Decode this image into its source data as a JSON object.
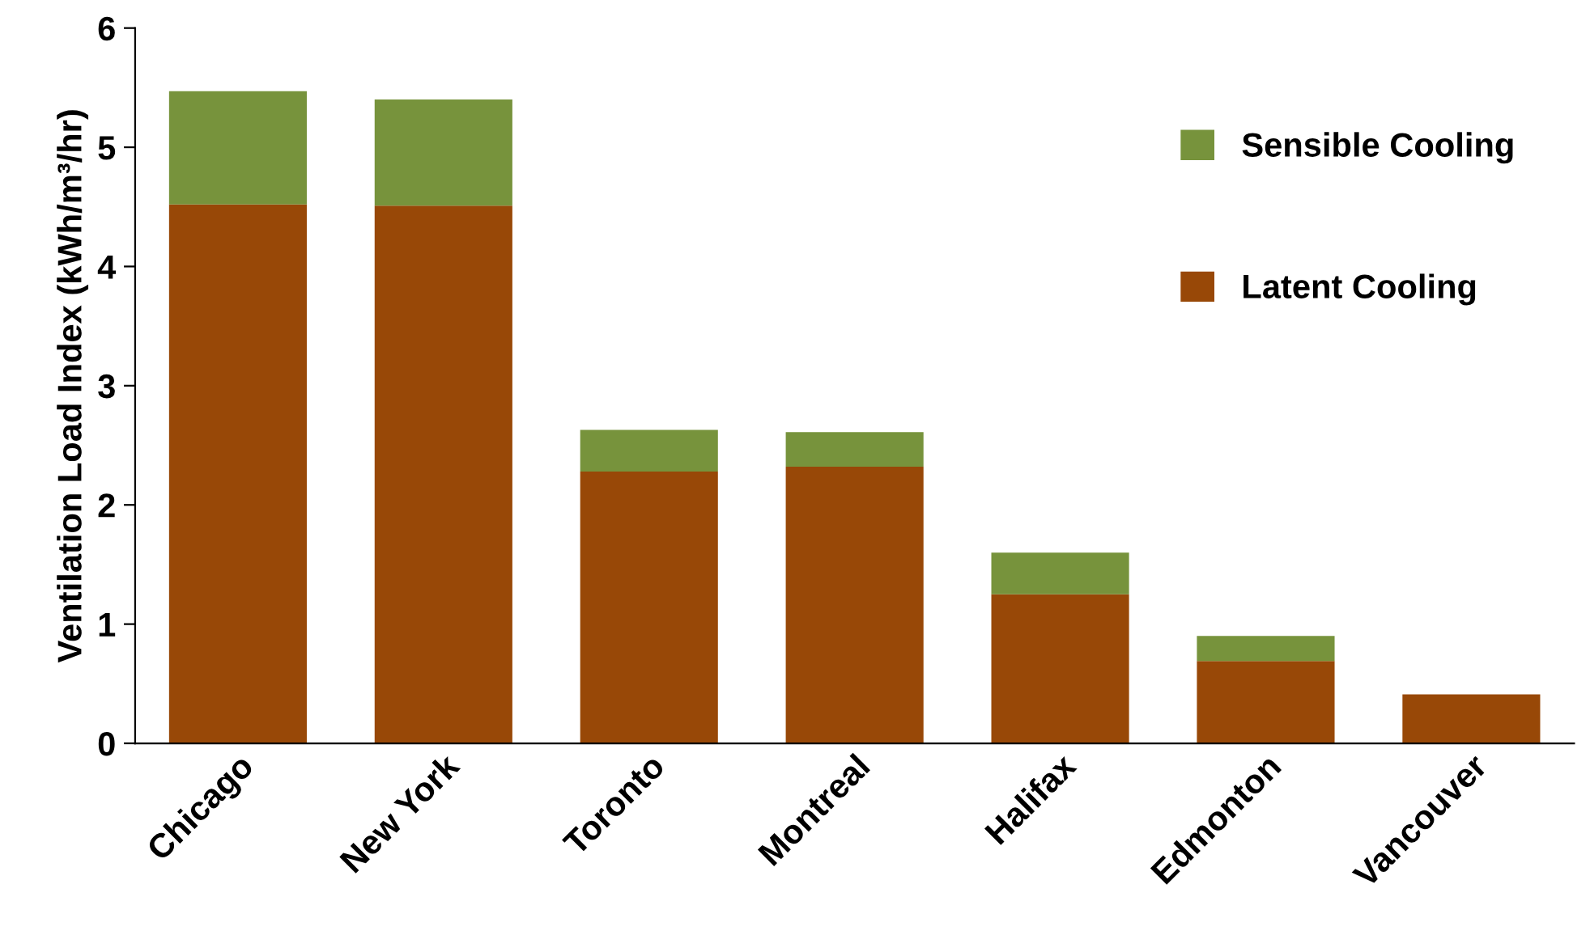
{
  "chart_data": {
    "type": "bar",
    "stacked": true,
    "ylabel": "Ventilation Load Index (kWh/m³/hr)",
    "categories": [
      "Chicago",
      "New York",
      "Toronto",
      "Montreal",
      "Halifax",
      "Edmonton",
      "Vancouver"
    ],
    "series": [
      {
        "name": "Latent Cooling",
        "color": "#984807",
        "values": [
          4.52,
          4.51,
          2.28,
          2.32,
          1.25,
          0.69,
          0.41
        ]
      },
      {
        "name": "Sensible Cooling",
        "color": "#77933c",
        "values": [
          0.95,
          0.89,
          0.35,
          0.29,
          0.35,
          0.21,
          0
        ]
      }
    ],
    "ylim": [
      0,
      6
    ],
    "yticks": [
      0,
      1,
      2,
      3,
      4,
      5,
      6
    ],
    "grid": false,
    "legend": "top right"
  }
}
